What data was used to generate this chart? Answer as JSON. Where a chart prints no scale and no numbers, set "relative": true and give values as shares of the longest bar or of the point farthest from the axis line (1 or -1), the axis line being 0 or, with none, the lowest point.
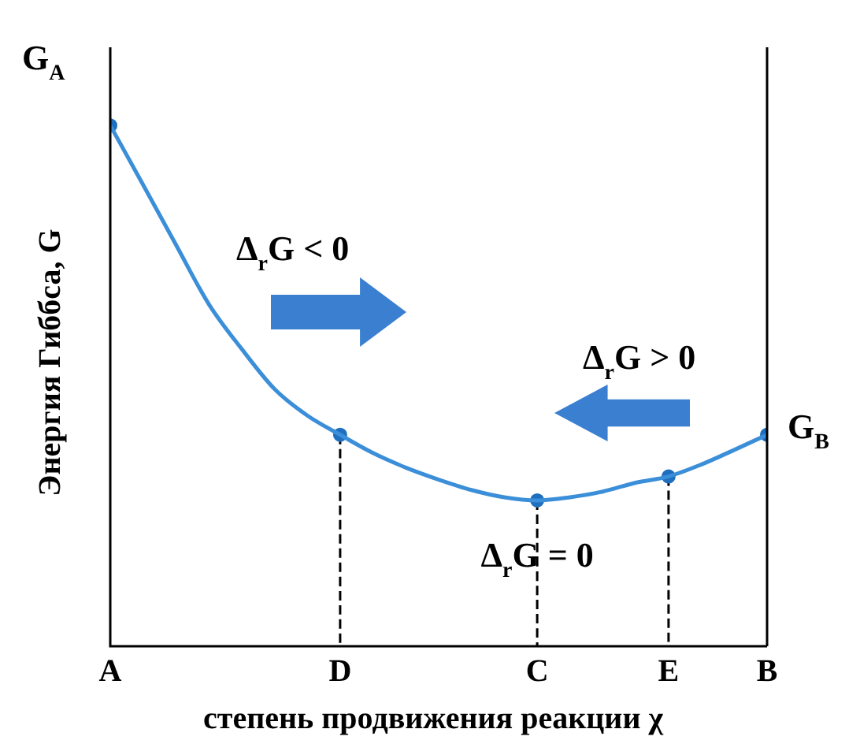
{
  "chart_data": {
    "type": "line",
    "relative": true,
    "xlabel": "степень продвижения реакции χ",
    "ylabel": "Энергия Гиббса, G",
    "categories": [
      "A",
      null,
      null,
      null,
      null,
      null,
      null,
      "D",
      null,
      null,
      null,
      null,
      null,
      "C",
      null,
      null,
      null,
      "E",
      null,
      null,
      "B"
    ],
    "series": [
      {
        "color": "#3b8ed8",
        "values": [
          1.0,
          0.886,
          0.771,
          0.657,
          0.571,
          0.494,
          0.443,
          0.406,
          0.371,
          0.343,
          0.32,
          0.3,
          0.286,
          0.28,
          0.286,
          0.297,
          0.314,
          0.326,
          0.349,
          0.377,
          0.406
        ]
      },
      {
        "type": "scatter",
        "marker": "circle",
        "color": "#1f6fc0",
        "x": [
          "A",
          "D",
          "C",
          "E",
          "B"
        ],
        "values": [
          1.0,
          0.406,
          0.28,
          0.326,
          0.406
        ]
      },
      {
        "type": "line",
        "line_style": "dashed",
        "color": "#000000",
        "x": [
          "D",
          "D"
        ],
        "values": [
          0.406,
          0
        ]
      },
      {
        "type": "line",
        "line_style": "dashed",
        "color": "#000000",
        "x": [
          "C",
          "C"
        ],
        "values": [
          0.28,
          0
        ]
      },
      {
        "type": "line",
        "line_style": "dashed",
        "color": "#000000",
        "x": [
          "E",
          "E"
        ],
        "values": [
          0.326,
          0
        ]
      }
    ],
    "marker": "none",
    "line_style": "solid",
    "grid": false,
    "legend": false,
    "annotations": [
      "G$_{A}$",
      "G$_{B}$",
      "Δ$_{r}$G < 0",
      "Δ$_{r}$G > 0",
      {
        "text": "Δ$_{r}$G = 0",
        "x": "C",
        "y": 0.28
      }
    ]
  }
}
